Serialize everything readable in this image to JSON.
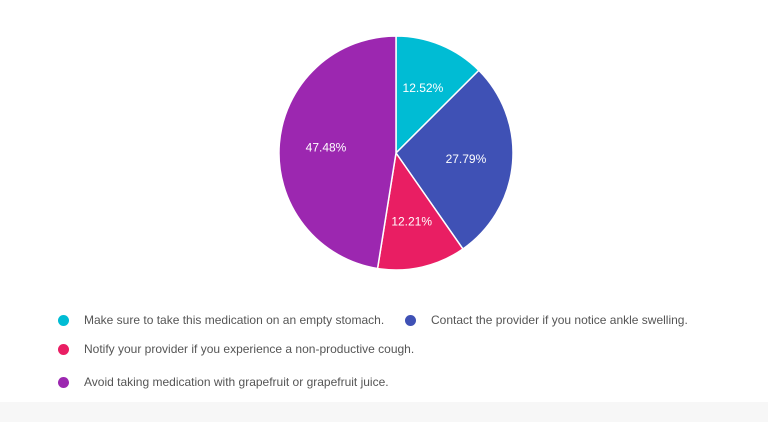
{
  "chart_data": {
    "type": "pie",
    "categories": [
      "Make sure to take this medication on an empty stomach.",
      "Contact the provider if you notice ankle swelling.",
      "Notify your provider if you experience a non-productive cough.",
      "Avoid taking medication with grapefruit or grapefruit juice."
    ],
    "values": [
      12.52,
      27.79,
      12.21,
      47.48
    ],
    "labels": [
      "12.52%",
      "27.79%",
      "12.21%",
      "47.48%"
    ],
    "colors": [
      "#00bcd4",
      "#3f51b5",
      "#e91e63",
      "#9c27b0"
    ],
    "legend_position": "bottom"
  }
}
